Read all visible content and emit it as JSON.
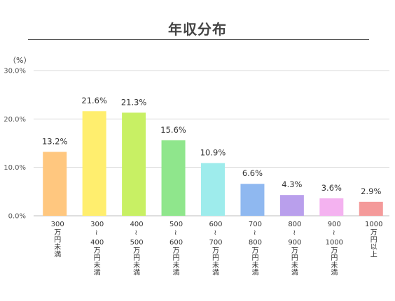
{
  "chart_data": {
    "type": "bar",
    "title": "年収分布",
    "unit_label": "（%）",
    "ylim": [
      0,
      30
    ],
    "yticks": [
      "0.0%",
      "10.0%",
      "20.0%",
      "30.0%"
    ],
    "ytick_values": [
      0,
      10,
      20,
      30
    ],
    "grid": true,
    "categories": [
      {
        "top": "300",
        "bottom": "万円未満"
      },
      {
        "top": "300",
        "mid": "400",
        "bottom": "万円未満"
      },
      {
        "top": "400",
        "mid": "500",
        "bottom": "万円未満"
      },
      {
        "top": "500",
        "mid": "600",
        "bottom": "万円未満"
      },
      {
        "top": "600",
        "mid": "700",
        "bottom": "万円未満"
      },
      {
        "top": "700",
        "mid": "800",
        "bottom": "万円未満"
      },
      {
        "top": "800",
        "mid": "900",
        "bottom": "万円未満"
      },
      {
        "top": "900",
        "mid": "1000",
        "bottom": "万円未満"
      },
      {
        "top": "1000",
        "bottom": "万円以上"
      }
    ],
    "values": [
      13.2,
      21.6,
      21.3,
      15.6,
      10.9,
      6.6,
      4.3,
      3.6,
      2.9
    ],
    "value_labels": [
      "13.2%",
      "21.6%",
      "21.3%",
      "15.6%",
      "10.9%",
      "6.6%",
      "4.3%",
      "3.6%",
      "2.9%"
    ],
    "colors": [
      "#FFC77F",
      "#FFEE6E",
      "#C8F064",
      "#8FE68C",
      "#9EECEC",
      "#8FB8F0",
      "#B99FEC",
      "#F4B2F0",
      "#F49A9A"
    ]
  }
}
